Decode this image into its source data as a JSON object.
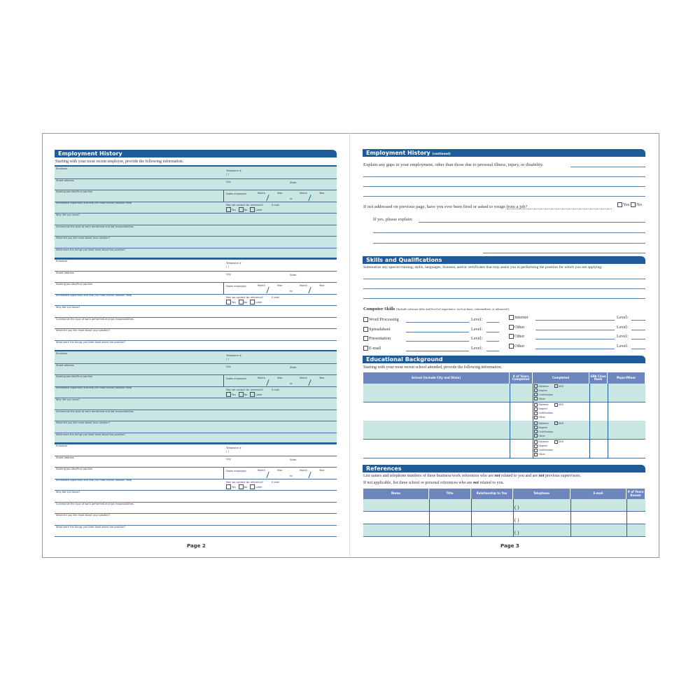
{
  "left_page": {
    "header": "Employment History",
    "intro": "Starting with your most recent employer, provide the following information.",
    "block_fields": {
      "employer": "Employer",
      "telephone": "Telephone #",
      "phone_parens": "(          )",
      "street": "Street address",
      "city": "City",
      "state": "State",
      "job_title": "Starting job title/Final job title",
      "dates": "Dates employed",
      "month": "Month",
      "year": "Year",
      "to": "to",
      "supervisor": "Immediate supervisor and title (for most recent position held)",
      "contact": "May we contact for reference?",
      "email": "E-mail",
      "yes": "Yes",
      "no": "No",
      "later": "Later",
      "why_leave": "Why did you leave?",
      "summarize": "Summarize the type of work performed and job responsibilities.",
      "liked_most": "What did you like most about your position?",
      "liked_least": "What were the things you liked least about the position?"
    },
    "blocks": [
      {
        "shaded": true
      },
      {
        "shaded": false
      },
      {
        "shaded": true
      },
      {
        "shaded": false
      }
    ],
    "page_label": "Page 2"
  },
  "right_page": {
    "employment": {
      "header": "Employment History",
      "header_suffix": "(continued)",
      "gaps": "Explain any gaps in your employment, other than those due to personal illness, injury, or disability.",
      "fired": "If not addressed on previous page, have you ever been fired or asked to resign from a job?",
      "yes": "Yes",
      "no": "No",
      "explain": "If yes, please explain:"
    },
    "skills": {
      "header": "Skills and Qualifications",
      "prompt": "Summarize any special training, skills, languages, licenses, and/or certificates that may assist you in performing the position for which you are applying:",
      "computer_title": "Computer Skills",
      "computer_note": "(Include software titles and level of experience, such as basic, intermediate, or advanced.)",
      "level": "Level:",
      "left_items": [
        "Word Processing",
        "Spreadsheet",
        "Presentation",
        "E-mail"
      ],
      "right_items": [
        "Internet",
        "Other",
        "Other",
        "Other"
      ]
    },
    "education": {
      "header": "Educational Background",
      "intro": "Starting with your most recent school attended, provide the following information.",
      "columns": [
        "School (Include City and State)",
        "# of Years Completed",
        "Completed",
        "GPA Class Rank",
        "Major/Minor"
      ],
      "options": [
        "Diploma",
        "GED",
        "Degree",
        "Certification",
        "Other"
      ],
      "rows": 4
    },
    "references": {
      "header": "References",
      "intro1_a": "List names and telephone numbers of three business/work references who are ",
      "not": "not",
      "intro1_b": " related to you and are ",
      "intro1_c": " previous supervisors.",
      "intro2_a": "If not applicable, list three school or personal references who are ",
      "intro2_b": " related to you.",
      "columns": [
        "Name",
        "Title",
        "Relationship to You",
        "Telephone",
        "E-mail",
        "# of Years Known"
      ],
      "phone_parens": "(          )",
      "rows": 3
    },
    "page_label": "Page 3"
  },
  "colors": {
    "header_blue": "#1f5a99",
    "shade_teal": "#c9e6e2",
    "table_header": "#6d86bd"
  }
}
